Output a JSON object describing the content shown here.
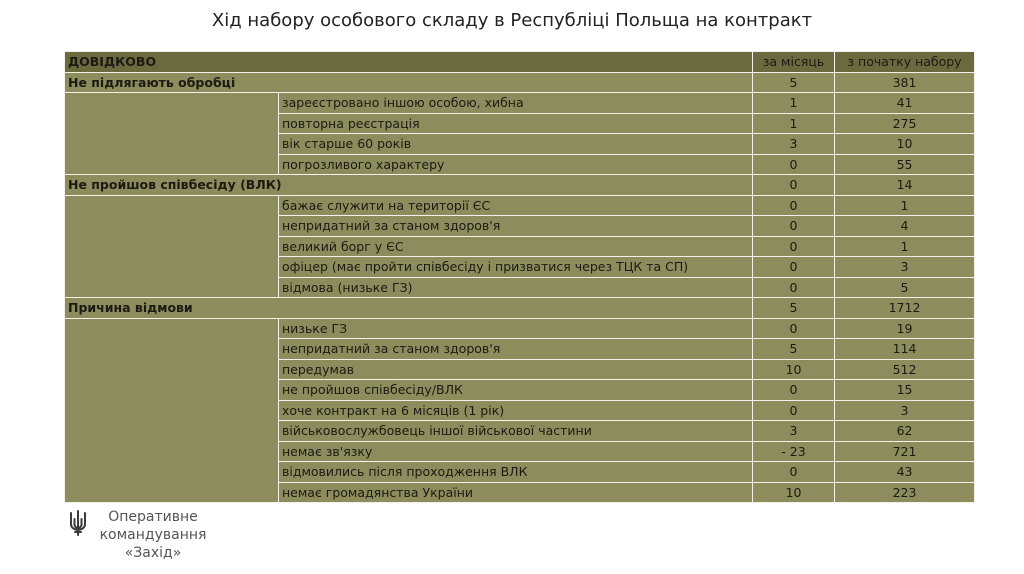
{
  "title": "Хід набору особового складу в Республіці Польща на контракт",
  "table": {
    "header": {
      "label": "ДОВІДКОВО",
      "col_month": "за місяць",
      "col_total": "з початку набору"
    },
    "sections": [
      {
        "label": "Не підлягають обробці",
        "month": "5",
        "total": "381",
        "rows": [
          {
            "label": "зареєстровано іншою особою, хибна",
            "month": "1",
            "total": "41"
          },
          {
            "label": "повторна реєстрація",
            "month": "1",
            "total": "275"
          },
          {
            "label": "вік старше 60 років",
            "month": "3",
            "total": "10"
          },
          {
            "label": "погрозливого характеру",
            "month": "0",
            "total": "55"
          }
        ]
      },
      {
        "label": "Не пройшов співбесіду (ВЛК)",
        "month": "0",
        "total": "14",
        "rows": [
          {
            "label": "бажає служити на території ЄС",
            "month": "0",
            "total": "1"
          },
          {
            "label": "непридатний за станом здоров'я",
            "month": "0",
            "total": "4"
          },
          {
            "label": "великий борг у ЄС",
            "month": "0",
            "total": "1"
          },
          {
            "label": "офіцер (має пройти співбесіду і призватися через ТЦК та СП)",
            "month": "0",
            "total": "3"
          },
          {
            "label": "відмова (низьке ГЗ)",
            "month": "0",
            "total": "5"
          }
        ]
      },
      {
        "label": "Причина відмови",
        "month": "5",
        "total": "1712",
        "rows": [
          {
            "label": "низьке ГЗ",
            "month": "0",
            "total": "19"
          },
          {
            "label": "непридатний за станом здоров'я",
            "month": "5",
            "total": "114"
          },
          {
            "label": "передумав",
            "month": "10",
            "total": "512"
          },
          {
            "label": "не пройшов співбесіду/ВЛК",
            "month": "0",
            "total": "15"
          },
          {
            "label": "хоче контракт на 6 місяців (1 рік)",
            "month": "0",
            "total": "3"
          },
          {
            "label": "військовослужбовець іншої військової частини",
            "month": "3",
            "total": "62"
          },
          {
            "label": "немає зв'язку",
            "month": "- 23",
            "total": "721"
          },
          {
            "label": "відмовились після проходження ВЛК",
            "month": "0",
            "total": "43"
          },
          {
            "label": "немає громадянства України",
            "month": "10",
            "total": "223"
          }
        ]
      }
    ]
  },
  "footer": {
    "line1": "Оперативне",
    "line2": "командування",
    "line3": "«Захід»",
    "logo_icon": "trident-icon"
  },
  "colors": {
    "header_bg": "#6b6a3e",
    "cell_bg": "#8d8c5c",
    "grid": "#f2f2ea"
  }
}
